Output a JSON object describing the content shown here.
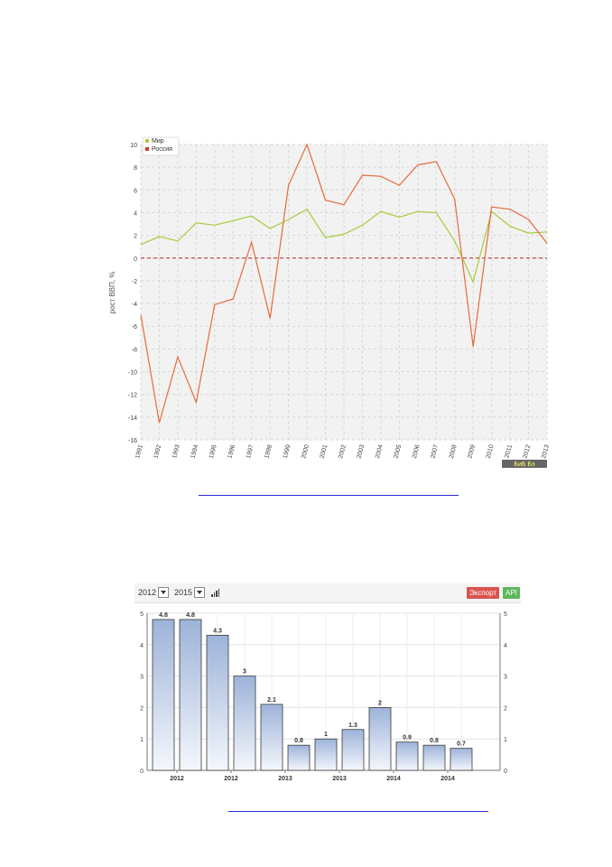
{
  "chart_data": [
    {
      "type": "line",
      "ylabel": "рост ВВП, %",
      "ylim": [
        -16,
        10
      ],
      "yticks": [
        "10",
        "8",
        "6",
        "4",
        "2",
        "0",
        "-2",
        "-4",
        "-6",
        "-8",
        "-10",
        "-12",
        "-14",
        "-16"
      ],
      "x": [
        "1991",
        "1992",
        "1993",
        "1994",
        "1995",
        "1996",
        "1997",
        "1998",
        "1999",
        "2000",
        "2001",
        "2002",
        "2003",
        "2004",
        "2005",
        "2006",
        "2007",
        "2008",
        "2009",
        "2010",
        "2011",
        "2012",
        "2013"
      ],
      "series": [
        {
          "name": "Мир",
          "color": "#a6cc3a",
          "values": [
            1.2,
            1.9,
            1.5,
            3.1,
            2.9,
            3.3,
            3.7,
            2.6,
            3.4,
            4.3,
            1.8,
            2.1,
            2.9,
            4.1,
            3.6,
            4.1,
            4.0,
            1.5,
            -2.1,
            4.1,
            2.8,
            2.2,
            2.3
          ]
        },
        {
          "name": "Россия",
          "color": "#e86a3c",
          "values": [
            -5.0,
            -14.5,
            -8.7,
            -12.7,
            -4.1,
            -3.6,
            1.4,
            -5.3,
            6.4,
            10.0,
            5.1,
            4.7,
            7.3,
            7.2,
            6.4,
            8.2,
            8.5,
            5.2,
            -7.8,
            4.5,
            4.3,
            3.4,
            1.3
          ]
        }
      ],
      "legend": "top-left",
      "grid": true,
      "zero_line_color": "#b02a2a",
      "watermark": "БиБ Бэ"
    },
    {
      "type": "bar",
      "ylim": [
        0,
        5
      ],
      "yticks": [
        "0",
        "1",
        "2",
        "3",
        "4",
        "5"
      ],
      "categories": [
        "2012",
        "2012",
        "2012",
        "2012",
        "2013",
        "2013",
        "2013",
        "2013",
        "2014",
        "2014",
        "2014",
        "2014"
      ],
      "xtick_labels": [
        "2012",
        "2012",
        "2013",
        "2013",
        "2014",
        "2014"
      ],
      "values": [
        4.8,
        4.8,
        4.3,
        3.0,
        2.1,
        0.8,
        1.0,
        1.3,
        2.0,
        0.9,
        0.8,
        0.7
      ],
      "labels": [
        "4.8",
        "4.8",
        "4.3",
        "3",
        "2.1",
        "0.8",
        "1",
        "1.3",
        "2",
        "0.9",
        "0.8",
        "0.7"
      ],
      "bar_color_top": "#9db3d9",
      "bar_color_bottom": "#f4f7fc",
      "grid": true
    }
  ],
  "toolbar": {
    "from_year": "2012",
    "to_year": "2015",
    "export_label": "Экспорт",
    "api_label": "API"
  },
  "colors": {
    "link": "#2b2bd9"
  }
}
